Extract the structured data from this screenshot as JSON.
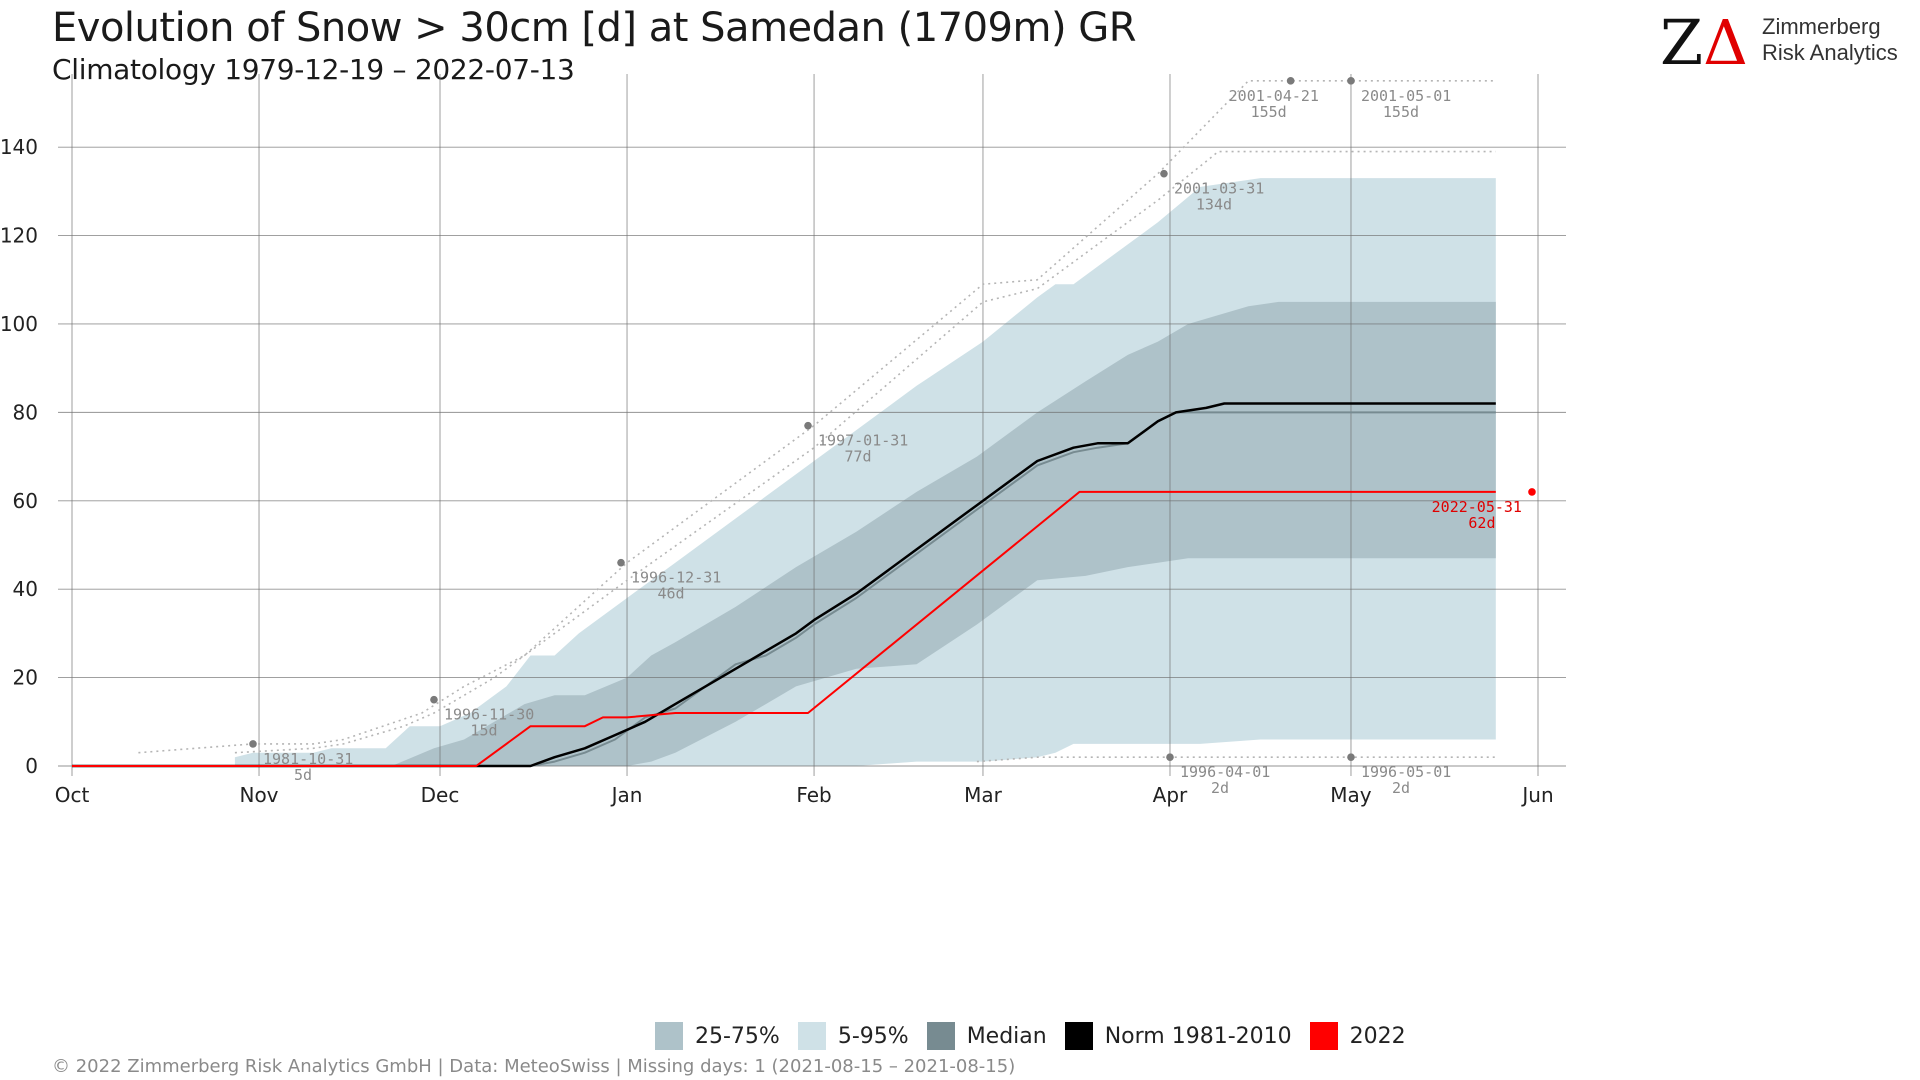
{
  "header": {
    "title": "Evolution of Snow > 30cm [d] at Samedan (1709m) GR",
    "subtitle": "Climatology 1979-12-19 – 2022-07-13"
  },
  "logo": {
    "mark": "ZΔ",
    "line1": "Zimmerberg",
    "line2": "Risk Analytics",
    "colors": {
      "z": "#111111",
      "delta": "#e00000"
    }
  },
  "footer": {
    "text": "©  2022 Zimmerberg Risk Analytics GmbH | Data: MeteoSwiss | Missing days: 1 (2021-08-15 – 2021-08-15)"
  },
  "legend": [
    {
      "label": "25-75%",
      "color": "#aec2c9"
    },
    {
      "label": "5-95%",
      "color": "#cfe1e7"
    },
    {
      "label": "Median",
      "color": "#778b91"
    },
    {
      "label": "Norm 1981-2010",
      "color": "#000000"
    },
    {
      "label": "2022",
      "color": "#ff0000"
    }
  ],
  "chart_data": {
    "type": "area",
    "x_unit": "days since Oct 1",
    "xlim": [
      0,
      243
    ],
    "ylim": [
      0,
      157
    ],
    "grid": true,
    "x_ticks": [
      {
        "label": "Oct",
        "x": 0
      },
      {
        "label": "Nov",
        "x": 31
      },
      {
        "label": "Dec",
        "x": 61
      },
      {
        "label": "Jan",
        "x": 92
      },
      {
        "label": "Feb",
        "x": 123
      },
      {
        "label": "Mar",
        "x": 151
      },
      {
        "label": "Apr",
        "x": 182
      },
      {
        "label": "May",
        "x": 212
      },
      {
        "label": "Jun",
        "x": 243
      }
    ],
    "y_ticks": [
      0,
      20,
      40,
      60,
      80,
      100,
      120,
      140
    ],
    "bands": [
      {
        "name": "5-95%",
        "color": "#cfe1e7",
        "x": [
          27,
          30,
          40,
          43,
          52,
          56,
          61,
          66,
          72,
          76,
          80,
          84,
          92,
          100,
          110,
          120,
          123,
          130,
          140,
          151,
          160,
          163,
          166,
          170,
          180,
          187,
          197,
          210,
          220,
          236
        ],
        "upper": [
          2,
          3,
          3,
          4,
          4,
          9,
          9,
          12,
          18,
          25,
          25,
          30,
          38,
          46,
          56,
          66,
          69,
          76,
          86,
          96,
          106,
          109,
          109,
          113,
          123,
          131,
          133,
          133,
          133,
          133
        ],
        "lower": [
          0,
          0,
          0,
          0,
          0,
          0,
          0,
          0,
          0,
          0,
          0,
          0,
          0,
          0,
          0,
          0,
          0,
          0,
          1,
          1,
          2,
          3,
          5,
          5,
          5,
          5,
          6,
          6,
          6,
          6
        ]
      },
      {
        "name": "25-75%",
        "color": "#aec2c9",
        "x": [
          53,
          60,
          65,
          70,
          75,
          80,
          85,
          92,
          96,
          100,
          110,
          120,
          130,
          140,
          150,
          160,
          168,
          175,
          180,
          185,
          195,
          200,
          236
        ],
        "upper": [
          0,
          4,
          6,
          10,
          14,
          16,
          16,
          20,
          25,
          28,
          36,
          45,
          53,
          62,
          70,
          80,
          87,
          93,
          96,
          100,
          104,
          105,
          105
        ],
        "lower": [
          0,
          0,
          0,
          0,
          0,
          0,
          0,
          0,
          1,
          3,
          10,
          18,
          22,
          23,
          32,
          42,
          43,
          45,
          46,
          47,
          47,
          47,
          47
        ]
      }
    ],
    "series": [
      {
        "name": "Median",
        "color": "#778b91",
        "width": 2,
        "x": [
          0,
          76,
          80,
          85,
          90,
          95,
          100,
          105,
          110,
          115,
          120,
          123,
          130,
          140,
          150,
          160,
          166,
          170,
          175,
          180,
          183,
          236
        ],
        "y": [
          0,
          0,
          1,
          3,
          6,
          11,
          13,
          18,
          23,
          25,
          29,
          32,
          38,
          48,
          58,
          68,
          71,
          72,
          73,
          78,
          80,
          80
        ]
      },
      {
        "name": "Norm 1981-2010",
        "color": "#000000",
        "width": 2.5,
        "x": [
          0,
          76,
          80,
          85,
          90,
          95,
          100,
          105,
          110,
          115,
          120,
          123,
          130,
          140,
          150,
          160,
          166,
          170,
          175,
          180,
          183,
          188,
          191,
          236
        ],
        "y": [
          0,
          0,
          2,
          4,
          7,
          10,
          14,
          18,
          22,
          26,
          30,
          33,
          39,
          49,
          59,
          69,
          72,
          73,
          73,
          78,
          80,
          81,
          82,
          82
        ]
      },
      {
        "name": "2022",
        "color": "#ff0000",
        "width": 2,
        "x": [
          0,
          67,
          76,
          85,
          88,
          92,
          100,
          110,
          122,
          167,
          236
        ],
        "y": [
          0,
          0,
          9,
          9,
          11,
          11,
          12,
          12,
          12,
          62,
          62
        ]
      }
    ],
    "record_envelopes": [
      {
        "name": "max-record-1",
        "x": [
          11,
          30,
          40,
          45,
          58,
          65,
          75,
          92,
          123,
          151,
          160,
          180,
          195,
          236
        ],
        "y": [
          3,
          5,
          5,
          6,
          12,
          18,
          25,
          46,
          77,
          109,
          110,
          134,
          155,
          155
        ]
      },
      {
        "name": "max-record-2",
        "x": [
          27,
          40,
          45,
          55,
          60,
          70,
          92,
          123,
          151,
          160,
          180,
          190,
          236
        ],
        "y": [
          3,
          4,
          5,
          9,
          12,
          20,
          42,
          72,
          105,
          108,
          128,
          139,
          139
        ]
      },
      {
        "name": "min-record",
        "x": [
          150,
          160,
          182,
          212,
          236
        ],
        "y": [
          1,
          2,
          2,
          2,
          2
        ]
      }
    ],
    "annotations": [
      {
        "date": "1981-10-31",
        "value": "5d",
        "x": 30,
        "y": 5,
        "color": "#8a8a8a",
        "align": "start"
      },
      {
        "date": "1996-11-30",
        "value": "15d",
        "x": 60,
        "y": 15,
        "color": "#8a8a8a",
        "align": "start"
      },
      {
        "date": "1996-12-31",
        "value": "46d",
        "x": 91,
        "y": 46,
        "color": "#8a8a8a",
        "align": "start"
      },
      {
        "date": "1997-01-31",
        "value": "77d",
        "x": 122,
        "y": 77,
        "color": "#8a8a8a",
        "align": "start"
      },
      {
        "date": "2001-03-31",
        "value": "134d",
        "x": 181,
        "y": 134,
        "color": "#8a8a8a",
        "align": "start"
      },
      {
        "date": "2001-04-21",
        "value": "155d",
        "x": 202,
        "y": 155,
        "color": "#8a8a8a",
        "align": "middle-left"
      },
      {
        "date": "2001-05-01",
        "value": "155d",
        "x": 212,
        "y": 155,
        "color": "#8a8a8a",
        "align": "start"
      },
      {
        "date": "1996-04-01",
        "value": "2d",
        "x": 182,
        "y": 2,
        "color": "#8a8a8a",
        "align": "start"
      },
      {
        "date": "1996-05-01",
        "value": "2d",
        "x": 212,
        "y": 2,
        "color": "#8a8a8a",
        "align": "start"
      },
      {
        "date": "2022-05-31",
        "value": "62d",
        "x": 242,
        "y": 62,
        "color": "#e00000",
        "align": "end"
      }
    ]
  }
}
